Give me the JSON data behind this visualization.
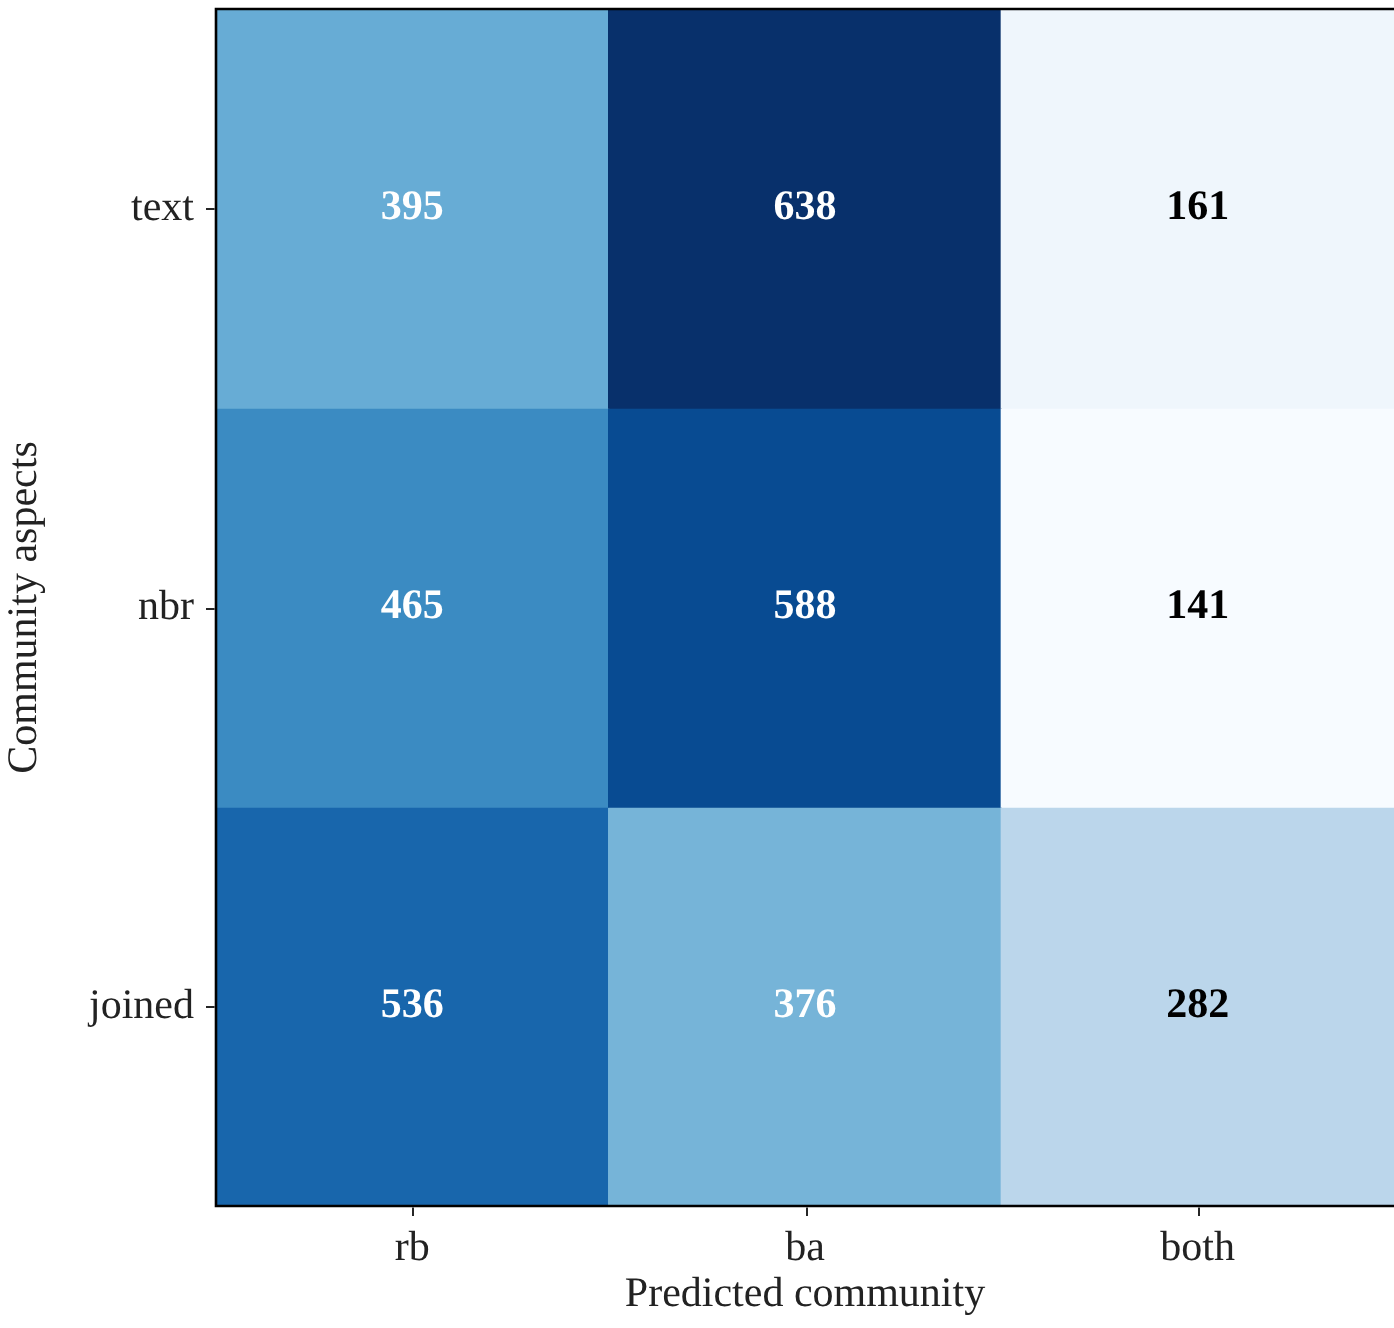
{
  "chart_data": {
    "type": "heatmap",
    "xlabel": "Predicted community",
    "ylabel": "Community aspects",
    "categories": [
      "rb",
      "ba",
      "both"
    ],
    "y_categories": [
      "text",
      "nbr",
      "joined"
    ],
    "cells": [
      [
        395,
        638,
        161
      ],
      [
        465,
        588,
        141
      ],
      [
        536,
        376,
        282
      ]
    ],
    "data_labels": true
  }
}
